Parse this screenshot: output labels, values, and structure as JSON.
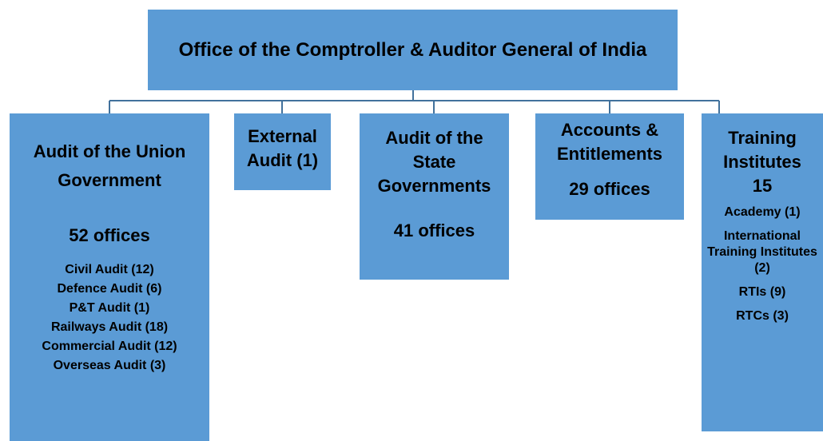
{
  "root": {
    "title": "Office of the Comptroller & Auditor General of India"
  },
  "nodes": [
    {
      "title": "Audit of the Union Government",
      "count": "52 offices",
      "items": [
        "Civil Audit (12)",
        "Defence Audit (6)",
        "P&T Audit (1)",
        "Railways Audit (18)",
        "Commercial Audit (12)",
        "Overseas Audit (3)"
      ]
    },
    {
      "title": "External Audit (1)"
    },
    {
      "title": "Audit of the State Governments",
      "count": "41 offices"
    },
    {
      "title": "Accounts & Entitlements",
      "count": "29 offices"
    },
    {
      "title": "Training Institutes",
      "count": "15",
      "items": [
        "Academy (1)",
        "International Training Institutes (2)",
        "RTIs (9)",
        "RTCs (3)"
      ]
    }
  ]
}
